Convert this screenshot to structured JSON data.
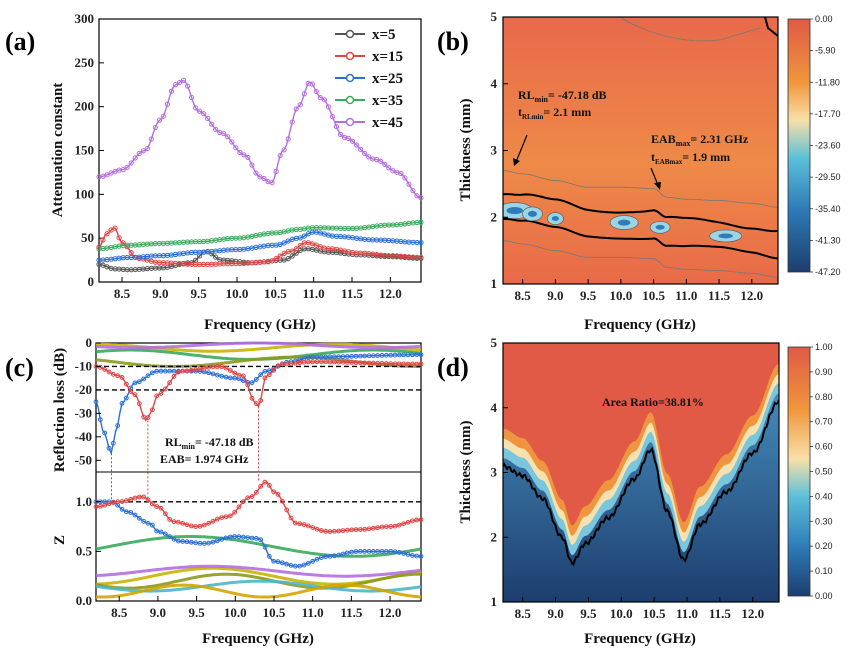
{
  "panels": {
    "a": {
      "tag": "(a)",
      "xlabel": "Frequency (GHz)",
      "ylabel": "Attenuation constant",
      "xticks": [
        "8.5",
        "9.0",
        "9.5",
        "10.0",
        "10.5",
        "11.0",
        "11.5",
        "12.0"
      ],
      "yticks": [
        "0",
        "50",
        "100",
        "150",
        "200",
        "250",
        "300"
      ],
      "legend": [
        "x=5",
        "x=15",
        "x=25",
        "x=35",
        "x=45"
      ]
    },
    "b": {
      "tag": "(b)",
      "xlabel": "Frequency (GHz)",
      "ylabel": "Thickness (mm)",
      "xticks": [
        "8.5",
        "9.0",
        "9.5",
        "10.0",
        "10.5",
        "11.0",
        "11.5",
        "12.0"
      ],
      "yticks": [
        "1",
        "2",
        "3",
        "4",
        "5"
      ],
      "colorbar": [
        "0.00",
        "-5.90",
        "-11.80",
        "-17.70",
        "-23.60",
        "-29.50",
        "-35.40",
        "-41.30",
        "-47.20"
      ],
      "ann1_l1": "RL",
      "ann1_l1_sub": "min",
      "ann1_l1_rest": "= -47.18 dB",
      "ann1_l2": "t",
      "ann1_l2_sub": "RLmin",
      "ann1_l2_rest": "= 2.1 mm",
      "ann2_l1": "EAB",
      "ann2_l1_sub": "max",
      "ann2_l1_rest": "= 2.31 GHz",
      "ann2_l2": "t",
      "ann2_l2_sub": "EABmax",
      "ann2_l2_rest": "= 1.9 mm"
    },
    "c": {
      "tag": "(c)",
      "xlabel": "Frequency (GHz)",
      "ylabel_top": "Reflection loss (dB)",
      "ylabel_bottom": "Z",
      "xticks": [
        "8.5",
        "9.0",
        "9.5",
        "10.0",
        "10.5",
        "11.0",
        "11.5",
        "12.0"
      ],
      "yticks_top": [
        "0",
        "-10",
        "-20",
        "-30",
        "-40",
        "-50"
      ],
      "yticks_bottom": [
        "0.0",
        "0.5",
        "1.0"
      ],
      "ann_l1": "RL",
      "ann_l1_sub": "min",
      "ann_l1_rest": "= -47.18 dB",
      "ann_l2": "EAB= 1.974 GHz"
    },
    "d": {
      "tag": "(d)",
      "xlabel": "Frequency (GHz)",
      "ylabel": "Thickness (mm)",
      "xticks": [
        "8.5",
        "9.0",
        "9.5",
        "10.0",
        "10.5",
        "11.0",
        "11.5",
        "12.0"
      ],
      "yticks": [
        "1",
        "2",
        "3",
        "4",
        "5"
      ],
      "colorbar": [
        "1.00",
        "0.90",
        "0.80",
        "0.70",
        "0.60",
        "0.50",
        "0.40",
        "0.30",
        "0.20",
        "0.10",
        "0.00"
      ],
      "ann": "Area Ratio=38.81%"
    }
  },
  "colors": {
    "x5": "#555555",
    "x15": "#e04545",
    "x25": "#2b6fd6",
    "x35": "#3aaa5c",
    "x45": "#b46ee0",
    "gold": "#c8b400",
    "olive": "#8c9a1e"
  },
  "chart_data": [
    {
      "panel": "a",
      "type": "line",
      "xlim": [
        8.2,
        12.4
      ],
      "ylim": [
        0,
        300
      ],
      "series": [
        {
          "name": "x=5",
          "x": [
            8.2,
            8.4,
            8.6,
            9.0,
            9.4,
            9.6,
            9.8,
            10.2,
            10.6,
            10.9,
            11.2,
            11.6,
            12.0,
            12.4
          ],
          "values": [
            20,
            15,
            14,
            16,
            22,
            35,
            25,
            22,
            25,
            38,
            34,
            31,
            29,
            27
          ]
        },
        {
          "name": "x=15",
          "x": [
            8.2,
            8.3,
            8.4,
            8.5,
            8.7,
            9.0,
            9.5,
            10.0,
            10.4,
            10.7,
            10.9,
            11.2,
            11.6,
            12.0,
            12.4
          ],
          "values": [
            40,
            55,
            62,
            45,
            27,
            22,
            20,
            21,
            23,
            35,
            45,
            38,
            33,
            30,
            28
          ]
        },
        {
          "name": "x=25",
          "x": [
            8.2,
            8.6,
            9.0,
            9.5,
            10.0,
            10.5,
            10.8,
            11.0,
            11.3,
            11.8,
            12.4
          ],
          "values": [
            25,
            28,
            30,
            34,
            37,
            42,
            50,
            57,
            52,
            48,
            45
          ]
        },
        {
          "name": "x=35",
          "x": [
            8.2,
            8.6,
            9.0,
            9.5,
            10.0,
            10.5,
            10.8,
            11.0,
            11.5,
            12.0,
            12.4
          ],
          "values": [
            38,
            42,
            44,
            46,
            50,
            56,
            60,
            62,
            61,
            65,
            68
          ]
        },
        {
          "name": "x=45",
          "x": [
            8.2,
            8.5,
            8.8,
            9.0,
            9.2,
            9.3,
            9.5,
            9.8,
            10.1,
            10.3,
            10.45,
            10.6,
            10.8,
            10.95,
            11.1,
            11.4,
            11.8,
            12.1,
            12.4
          ],
          "values": [
            120,
            128,
            150,
            185,
            225,
            230,
            195,
            170,
            145,
            120,
            113,
            150,
            200,
            228,
            210,
            165,
            140,
            125,
            96
          ]
        }
      ]
    },
    {
      "panel": "b",
      "type": "heatmap",
      "xlim": [
        8.2,
        12.4
      ],
      "ylim": [
        1,
        5
      ],
      "zlim": [
        -47.2,
        0
      ],
      "ridge": {
        "x": [
          8.2,
          8.5,
          9.0,
          9.5,
          10.0,
          10.5,
          10.7,
          11.0,
          11.5,
          12.0,
          12.4
        ],
        "y": [
          2.15,
          2.1,
          2.0,
          1.9,
          1.9,
          1.88,
          1.75,
          1.72,
          1.7,
          1.66,
          1.6
        ]
      }
    },
    {
      "panel": "c",
      "type": "line",
      "xlim": [
        8.2,
        12.4
      ],
      "ylim_rl": [
        -55,
        0
      ],
      "ylim_z": [
        0,
        1.3
      ],
      "reference_lines": {
        "rl": [
          -10,
          -20
        ],
        "z": [
          1.0
        ]
      },
      "rl_series": [
        {
          "x": [
            8.2,
            8.3,
            8.4,
            8.45,
            8.55,
            8.7,
            9.0,
            9.5,
            10.0,
            10.2,
            10.4,
            10.7,
            11.0,
            12.4
          ],
          "values": [
            -25,
            -38,
            -47,
            -38,
            -25,
            -17,
            -12,
            -12,
            -15,
            -17,
            -12,
            -8,
            -6,
            -5
          ]
        },
        {
          "x": [
            8.2,
            8.5,
            8.7,
            8.85,
            8.9,
            9.0,
            9.3,
            9.8,
            10.1,
            10.25,
            10.3,
            10.4,
            10.6,
            11.0,
            12.4
          ],
          "values": [
            -10,
            -14,
            -22,
            -33,
            -30,
            -22,
            -12,
            -10,
            -14,
            -25,
            -27,
            -14,
            -9,
            -8,
            -9
          ]
        }
      ],
      "z_series": [
        {
          "x": [
            8.2,
            8.4,
            8.6,
            8.9,
            9.0,
            9.3,
            9.6,
            10.0,
            10.3,
            10.5,
            10.8,
            11.2,
            11.6,
            12.0,
            12.4
          ],
          "values": [
            1.0,
            1.0,
            0.9,
            0.78,
            0.7,
            0.6,
            0.58,
            0.65,
            0.63,
            0.4,
            0.35,
            0.45,
            0.5,
            0.5,
            0.45
          ]
        },
        {
          "x": [
            8.2,
            8.5,
            8.8,
            9.0,
            9.2,
            9.5,
            9.9,
            10.2,
            10.4,
            10.5,
            10.8,
            11.2,
            11.6,
            12.0,
            12.4
          ],
          "values": [
            0.95,
            1.0,
            1.05,
            0.95,
            0.8,
            0.75,
            0.85,
            1.05,
            1.2,
            1.1,
            0.78,
            0.7,
            0.72,
            0.75,
            0.82
          ]
        }
      ]
    },
    {
      "panel": "d",
      "type": "heatmap",
      "xlim": [
        8.2,
        12.4
      ],
      "ylim": [
        1,
        5
      ],
      "zlim": [
        0,
        1
      ],
      "boundary": {
        "x": [
          8.2,
          8.5,
          8.8,
          9.1,
          9.25,
          9.45,
          9.8,
          10.2,
          10.45,
          10.7,
          10.95,
          11.2,
          11.6,
          12.0,
          12.4
        ],
        "y": [
          3.1,
          2.95,
          2.6,
          2.0,
          1.6,
          1.9,
          2.3,
          2.9,
          3.35,
          2.4,
          1.65,
          2.2,
          2.7,
          3.3,
          4.1
        ]
      }
    }
  ]
}
